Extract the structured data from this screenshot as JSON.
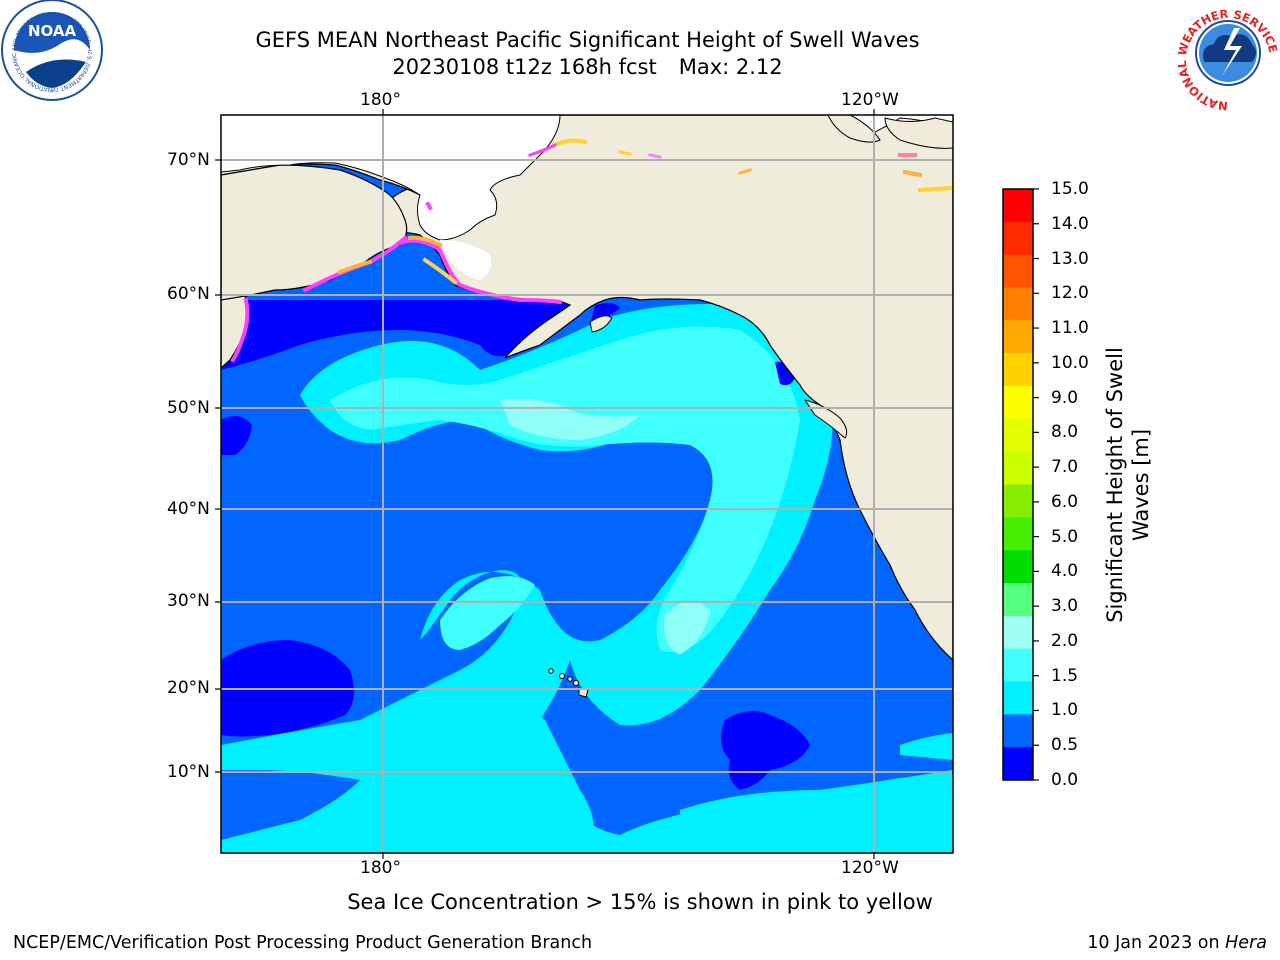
{
  "header": {
    "title_line1": "GEFS MEAN Northeast Pacific Significant Height of Swell Waves",
    "title_run": "20230108 t12z 168h fcst",
    "title_max": "Max: 2.12"
  },
  "logos": {
    "left": {
      "name": "noaa-logo",
      "text": "NOAA",
      "ring_text": "NATIONAL OCEANIC AND ATMOSPHERIC ADMINISTRATION · U.S. DEPARTMENT OF COMMERCE"
    },
    "right": {
      "name": "nws-logo",
      "ring_text": "NATIONAL WEATHER SERVICE"
    }
  },
  "map": {
    "lon_labels_top": [
      "180°",
      "120°W"
    ],
    "lon_labels_bottom": [
      "180°",
      "120°W"
    ],
    "lat_labels": [
      "70°N",
      "60°N",
      "50°N",
      "40°N",
      "30°N",
      "20°N",
      "10°N"
    ],
    "colors": {
      "land": "#efecdc",
      "water_low": "#0000ff",
      "water_0_5": "#0066ff",
      "water_1_0": "#00f0ff",
      "water_1_5": "#40ffff",
      "water_2_0": "#a0fff4",
      "ice_pink": "#ff40ff",
      "ice_yellow": "#ffd030",
      "grid": "#b0b0b0"
    }
  },
  "colorbar": {
    "title": "Significant Height of Swell\nWaves [m]",
    "title_line1": "Significant Height of Swell",
    "title_line2": "Waves [m]",
    "ticks": [
      "15.0",
      "14.0",
      "13.0",
      "12.0",
      "11.0",
      "10.0",
      "9.0",
      "8.0",
      "7.0",
      "6.0",
      "5.0",
      "4.0",
      "3.0",
      "2.0",
      "1.5",
      "1.0",
      "0.5",
      "0.0"
    ],
    "colors_top_to_bottom": [
      "#ff0000",
      "#ff2a00",
      "#ff5500",
      "#ff8000",
      "#ffaa00",
      "#ffd200",
      "#ffff00",
      "#e6ff00",
      "#ccff00",
      "#88ee00",
      "#44ee00",
      "#00dd00",
      "#55ff7f",
      "#a0fff4",
      "#40ffff",
      "#00f0ff",
      "#0066ff",
      "#0000ff"
    ]
  },
  "caption": "Sea Ice Concentration > 15% is shown in pink to yellow",
  "footer": {
    "left": "NCEP/EMC/Verification Post Processing Product Generation Branch",
    "right_prefix": "10 Jan 2023 on ",
    "right_machine": "Hera"
  }
}
